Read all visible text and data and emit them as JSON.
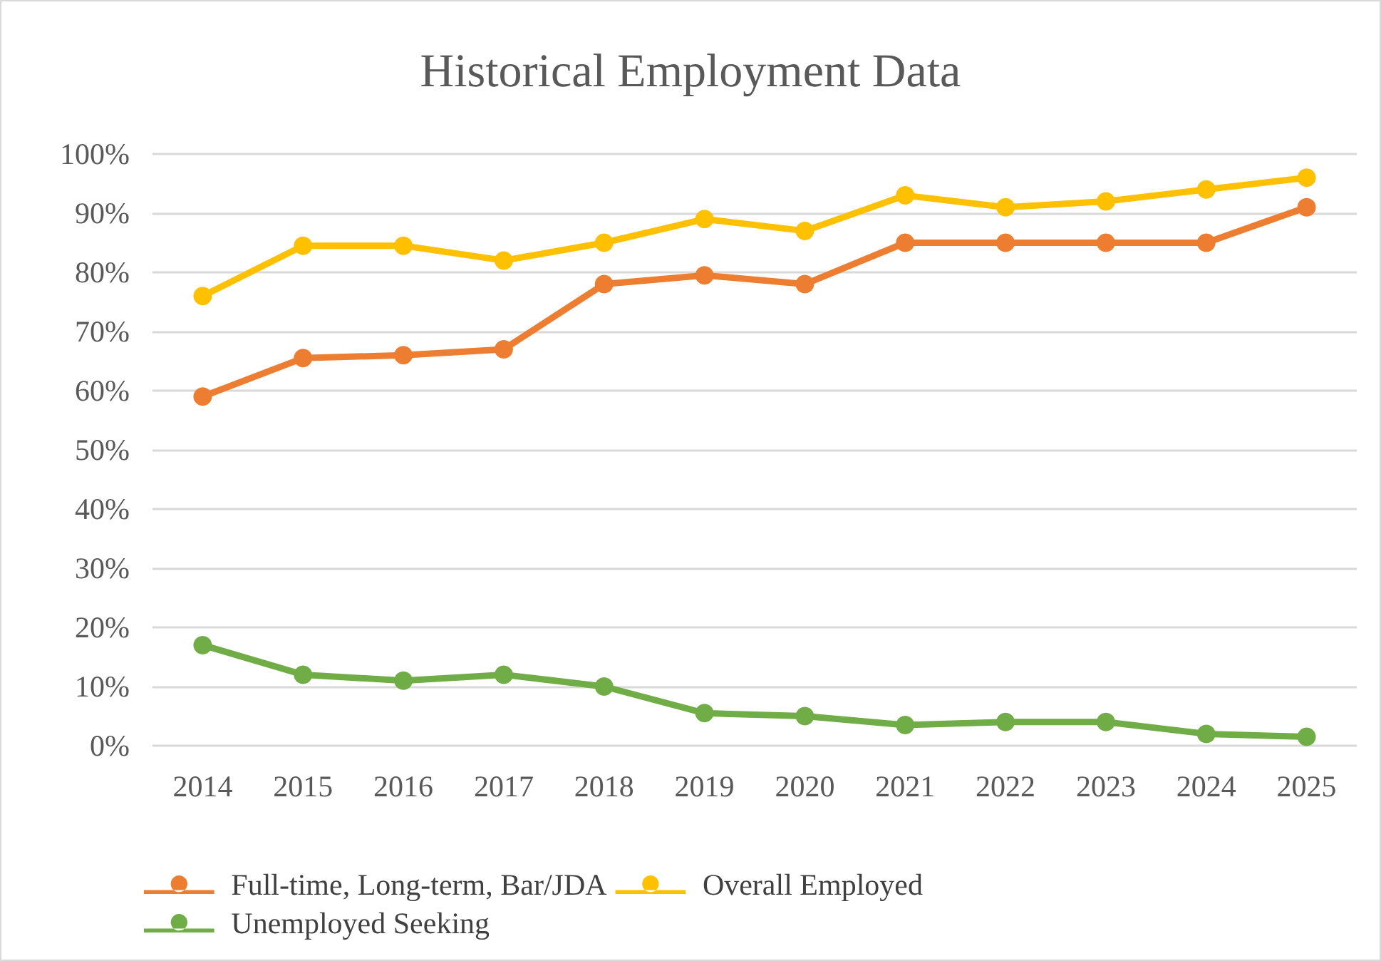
{
  "chart_data": {
    "type": "line",
    "title": "Historical Employment Data",
    "categories": [
      "2014",
      "2015",
      "2016",
      "2017",
      "2018",
      "2019",
      "2020",
      "2021",
      "2022",
      "2023",
      "2024",
      "2025"
    ],
    "series": [
      {
        "name": "Full-time, Long-term, Bar/JDA",
        "color": "#ed7d31",
        "values": [
          59,
          65.5,
          66,
          67,
          78,
          79.5,
          78,
          85,
          85,
          85,
          85,
          91
        ]
      },
      {
        "name": "Overall Employed",
        "color": "#ffc000",
        "values": [
          76,
          84.5,
          84.5,
          82,
          85,
          89,
          87,
          93,
          91,
          92,
          94,
          96
        ]
      },
      {
        "name": "Unemployed Seeking",
        "color": "#70ad47",
        "values": [
          17,
          12,
          11,
          12,
          10,
          5.5,
          5,
          3.5,
          4,
          4,
          2,
          1.5
        ]
      }
    ],
    "ylim": [
      0,
      100
    ],
    "yticks": [
      {
        "value": 0,
        "label": "0%"
      },
      {
        "value": 10,
        "label": "10%"
      },
      {
        "value": 20,
        "label": "20%"
      },
      {
        "value": 30,
        "label": "30%"
      },
      {
        "value": 40,
        "label": "40%"
      },
      {
        "value": 50,
        "label": "50%"
      },
      {
        "value": 60,
        "label": "60%"
      },
      {
        "value": 70,
        "label": "70%"
      },
      {
        "value": 80,
        "label": "80%"
      },
      {
        "value": 90,
        "label": "90%"
      },
      {
        "value": 100,
        "label": "100%"
      }
    ],
    "grid": "y",
    "legend": "bottom",
    "marker": "circle",
    "line_style": "solid"
  }
}
